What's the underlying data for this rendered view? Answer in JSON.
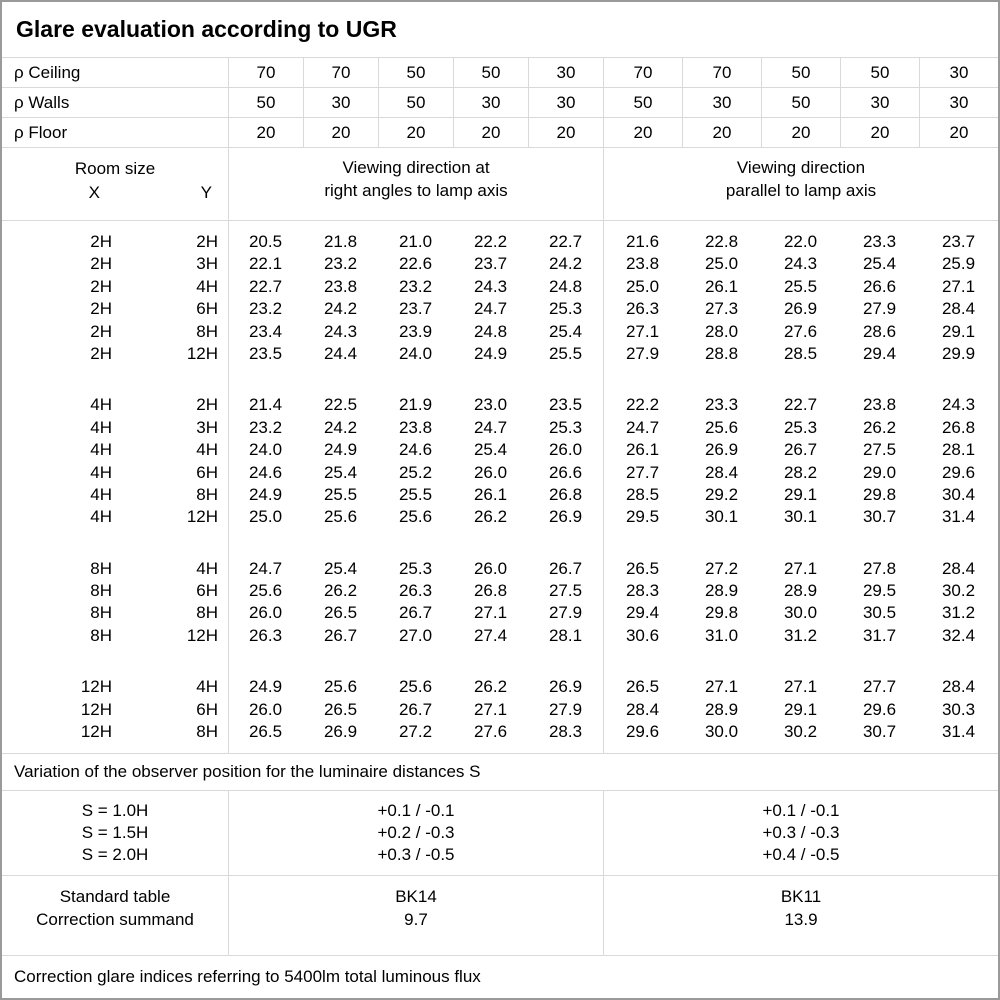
{
  "title": "Glare evaluation according to UGR",
  "reflectances": [
    {
      "label": "ρ Ceiling",
      "values": [
        "70",
        "70",
        "50",
        "50",
        "30",
        "70",
        "70",
        "50",
        "50",
        "30"
      ]
    },
    {
      "label": "ρ Walls",
      "values": [
        "50",
        "30",
        "50",
        "30",
        "30",
        "50",
        "30",
        "50",
        "30",
        "30"
      ]
    },
    {
      "label": "ρ Floor",
      "values": [
        "20",
        "20",
        "20",
        "20",
        "20",
        "20",
        "20",
        "20",
        "20",
        "20"
      ]
    }
  ],
  "header": {
    "room_size_label": "Room size",
    "x_label": "X",
    "y_label": "Y",
    "group_right_angles_line1": "Viewing direction at",
    "group_right_angles_line2": "right angles to lamp axis",
    "group_parallel_line1": "Viewing direction",
    "group_parallel_line2": "parallel to lamp axis"
  },
  "ugr_blocks": [
    {
      "rows": [
        {
          "x": "2H",
          "y": "2H",
          "right_angles": [
            "20.5",
            "21.8",
            "21.0",
            "22.2",
            "22.7"
          ],
          "parallel": [
            "21.6",
            "22.8",
            "22.0",
            "23.3",
            "23.7"
          ]
        },
        {
          "x": "2H",
          "y": "3H",
          "right_angles": [
            "22.1",
            "23.2",
            "22.6",
            "23.7",
            "24.2"
          ],
          "parallel": [
            "23.8",
            "25.0",
            "24.3",
            "25.4",
            "25.9"
          ]
        },
        {
          "x": "2H",
          "y": "4H",
          "right_angles": [
            "22.7",
            "23.8",
            "23.2",
            "24.3",
            "24.8"
          ],
          "parallel": [
            "25.0",
            "26.1",
            "25.5",
            "26.6",
            "27.1"
          ]
        },
        {
          "x": "2H",
          "y": "6H",
          "right_angles": [
            "23.2",
            "24.2",
            "23.7",
            "24.7",
            "25.3"
          ],
          "parallel": [
            "26.3",
            "27.3",
            "26.9",
            "27.9",
            "28.4"
          ]
        },
        {
          "x": "2H",
          "y": "8H",
          "right_angles": [
            "23.4",
            "24.3",
            "23.9",
            "24.8",
            "25.4"
          ],
          "parallel": [
            "27.1",
            "28.0",
            "27.6",
            "28.6",
            "29.1"
          ]
        },
        {
          "x": "2H",
          "y": "12H",
          "right_angles": [
            "23.5",
            "24.4",
            "24.0",
            "24.9",
            "25.5"
          ],
          "parallel": [
            "27.9",
            "28.8",
            "28.5",
            "29.4",
            "29.9"
          ]
        }
      ]
    },
    {
      "rows": [
        {
          "x": "4H",
          "y": "2H",
          "right_angles": [
            "21.4",
            "22.5",
            "21.9",
            "23.0",
            "23.5"
          ],
          "parallel": [
            "22.2",
            "23.3",
            "22.7",
            "23.8",
            "24.3"
          ]
        },
        {
          "x": "4H",
          "y": "3H",
          "right_angles": [
            "23.2",
            "24.2",
            "23.8",
            "24.7",
            "25.3"
          ],
          "parallel": [
            "24.7",
            "25.6",
            "25.3",
            "26.2",
            "26.8"
          ]
        },
        {
          "x": "4H",
          "y": "4H",
          "right_angles": [
            "24.0",
            "24.9",
            "24.6",
            "25.4",
            "26.0"
          ],
          "parallel": [
            "26.1",
            "26.9",
            "26.7",
            "27.5",
            "28.1"
          ]
        },
        {
          "x": "4H",
          "y": "6H",
          "right_angles": [
            "24.6",
            "25.4",
            "25.2",
            "26.0",
            "26.6"
          ],
          "parallel": [
            "27.7",
            "28.4",
            "28.2",
            "29.0",
            "29.6"
          ]
        },
        {
          "x": "4H",
          "y": "8H",
          "right_angles": [
            "24.9",
            "25.5",
            "25.5",
            "26.1",
            "26.8"
          ],
          "parallel": [
            "28.5",
            "29.2",
            "29.1",
            "29.8",
            "30.4"
          ]
        },
        {
          "x": "4H",
          "y": "12H",
          "right_angles": [
            "25.0",
            "25.6",
            "25.6",
            "26.2",
            "26.9"
          ],
          "parallel": [
            "29.5",
            "30.1",
            "30.1",
            "30.7",
            "31.4"
          ]
        }
      ]
    },
    {
      "rows": [
        {
          "x": "8H",
          "y": "4H",
          "right_angles": [
            "24.7",
            "25.4",
            "25.3",
            "26.0",
            "26.7"
          ],
          "parallel": [
            "26.5",
            "27.2",
            "27.1",
            "27.8",
            "28.4"
          ]
        },
        {
          "x": "8H",
          "y": "6H",
          "right_angles": [
            "25.6",
            "26.2",
            "26.3",
            "26.8",
            "27.5"
          ],
          "parallel": [
            "28.3",
            "28.9",
            "28.9",
            "29.5",
            "30.2"
          ]
        },
        {
          "x": "8H",
          "y": "8H",
          "right_angles": [
            "26.0",
            "26.5",
            "26.7",
            "27.1",
            "27.9"
          ],
          "parallel": [
            "29.4",
            "29.8",
            "30.0",
            "30.5",
            "31.2"
          ]
        },
        {
          "x": "8H",
          "y": "12H",
          "right_angles": [
            "26.3",
            "26.7",
            "27.0",
            "27.4",
            "28.1"
          ],
          "parallel": [
            "30.6",
            "31.0",
            "31.2",
            "31.7",
            "32.4"
          ]
        }
      ]
    },
    {
      "rows": [
        {
          "x": "12H",
          "y": "4H",
          "right_angles": [
            "24.9",
            "25.6",
            "25.6",
            "26.2",
            "26.9"
          ],
          "parallel": [
            "26.5",
            "27.1",
            "27.1",
            "27.7",
            "28.4"
          ]
        },
        {
          "x": "12H",
          "y": "6H",
          "right_angles": [
            "26.0",
            "26.5",
            "26.7",
            "27.1",
            "27.9"
          ],
          "parallel": [
            "28.4",
            "28.9",
            "29.1",
            "29.6",
            "30.3"
          ]
        },
        {
          "x": "12H",
          "y": "8H",
          "right_angles": [
            "26.5",
            "26.9",
            "27.2",
            "27.6",
            "28.3"
          ],
          "parallel": [
            "29.6",
            "30.0",
            "30.2",
            "30.7",
            "31.4"
          ]
        }
      ]
    }
  ],
  "variation_note": "Variation of the observer position for the luminaire distances S",
  "variation_rows": [
    {
      "s": "S = 1.0H",
      "right_angles": "+0.1 / -0.1",
      "parallel": "+0.1 / -0.1"
    },
    {
      "s": "S = 1.5H",
      "right_angles": "+0.2 / -0.3",
      "parallel": "+0.3 / -0.3"
    },
    {
      "s": "S = 2.0H",
      "right_angles": "+0.3 / -0.5",
      "parallel": "+0.4 / -0.5"
    }
  ],
  "standard": {
    "table_label": "Standard table",
    "summand_label": "Correction summand",
    "right_angles_table": "BK14",
    "right_angles_summand": "9.7",
    "parallel_table": "BK11",
    "parallel_summand": "13.9"
  },
  "footer_note": "Correction glare indices referring to 5400lm total luminous flux",
  "colors": {
    "background": "#ffffff",
    "text": "#000000",
    "grid_line": "#d9d9d9",
    "outer_border": "#9a9a9a"
  }
}
